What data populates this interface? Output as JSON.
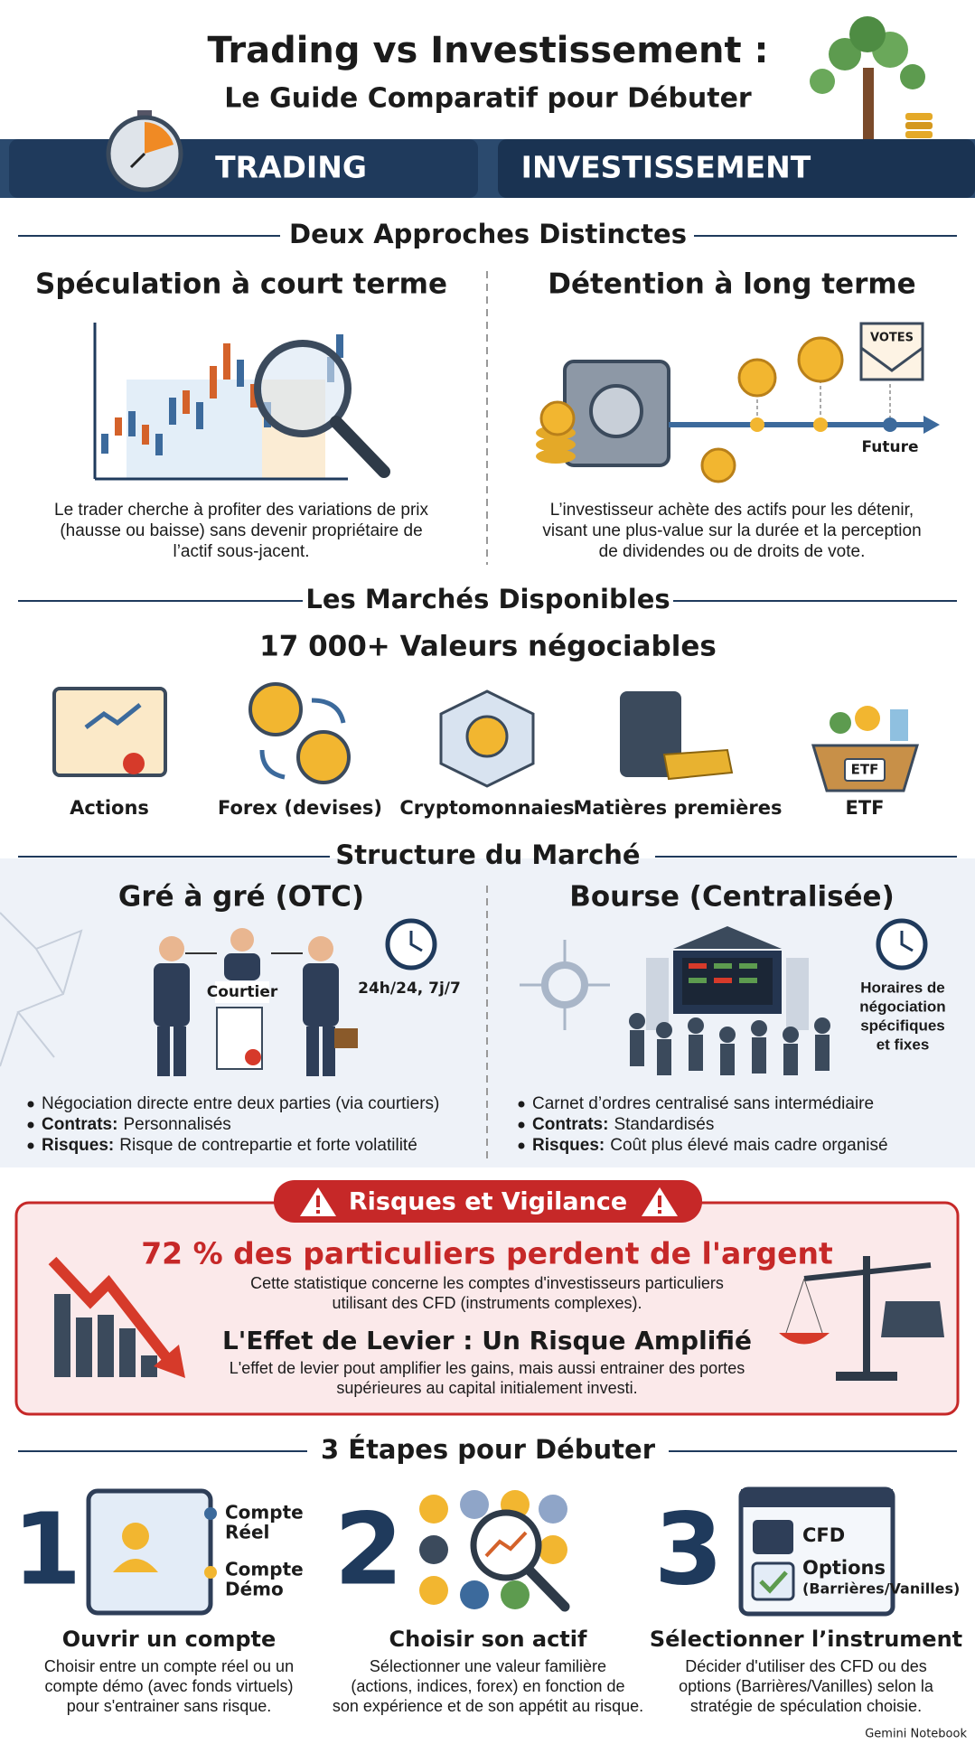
{
  "header": {
    "title_line1": "Trading vs Investissement :",
    "title_line2": "Le Guide Comparatif pour Débuter",
    "trading_label": "TRADING",
    "investing_label": "INVESTISSEMENT"
  },
  "approaches": {
    "title": "Deux Approches Distinctes",
    "trading": {
      "heading": "Spéculation à court terme",
      "text": [
        "Le trader cherche à profiter des variations de prix",
        "(hausse ou baisse) sans devenir propriétaire de",
        "l’actif sous-jacent."
      ]
    },
    "investing": {
      "heading": "Détention à long terme",
      "votes_label": "VOTES",
      "future_label": "Future",
      "text": [
        "L’investisseur achète des actifs pour les détenir,",
        "visant une plus-value sur la durée et la perception",
        "de dividendes ou de droits de vote."
      ]
    }
  },
  "markets": {
    "title": "Les Marchés Disponibles",
    "headline": "17 000+ Valeurs négociables",
    "items": [
      "Actions",
      "Forex (devises)",
      "Cryptomonnaies",
      "Matières premières",
      "ETF"
    ],
    "etf_icon_label": "ETF"
  },
  "structure": {
    "title": "Structure du Marché",
    "otc": {
      "heading": "Gré à gré (OTC)",
      "broker_label": "Courtier",
      "hours": "24h/24, 7j/7",
      "bullets": [
        {
          "text": "Négociation directe entre deux parties (via courtiers)"
        },
        {
          "label": "Contrats:",
          "text": "Personnalisés"
        },
        {
          "label": "Risques:",
          "text": "Risque de contrepartie et forte volatilité"
        }
      ]
    },
    "exchange": {
      "heading": "Bourse (Centralisée)",
      "hours": [
        "Horaires de",
        "négociation",
        "spécifiques",
        "et fixes"
      ],
      "bullets": [
        {
          "text": "Carnet d’ordres centralisé sans intermédiaire"
        },
        {
          "label": "Contrats:",
          "text": "Standardisés"
        },
        {
          "label": "Risques:",
          "text": "Coût plus élevé mais cadre organisé"
        }
      ]
    }
  },
  "risks": {
    "title": "Risques et Vigilance",
    "statistic": "72 % des particuliers perdent de l'argent",
    "statistic_text": [
      "Cette statistique concerne les comptes d'investisseurs particuliers",
      "utilisant des CFD (instruments complexes)."
    ],
    "leverage_title": "L'Effet de Levier : Un Risque Amplifié",
    "leverage_text": [
      "L'effet de levier pout amplifier les gains, mais aussi entrainer des portes",
      "supérieures au capital initialement investi."
    ]
  },
  "steps": {
    "title": "3 Étapes pour Débuter",
    "items": [
      {
        "number": "1",
        "title": "Ouvrir un compte",
        "options": [
          [
            "Compte",
            "Réel"
          ],
          [
            "Compte",
            "Démo"
          ]
        ],
        "text": [
          "Choisir entre un compte réel ou un",
          "compte démo (avec fonds virtuels)",
          "pour s'entrainer sans risque."
        ]
      },
      {
        "number": "2",
        "title": "Choisir son actif",
        "text": [
          "Sélectionner une valeur familière",
          "(actions, indices, forex) en fonction de",
          "son expérience et de son appétit au risque."
        ]
      },
      {
        "number": "3",
        "title": "Sélectionner l’instrument",
        "options": [
          "CFD",
          "Options",
          "(Barrières/Vanilles)"
        ],
        "text": [
          "Décider d'utiliser des CFD ou des",
          "options (Barrières/Vanilles) selon la",
          "stratégie de spéculation choisie."
        ]
      }
    ]
  },
  "footer": {
    "brand": "Gemini Notebook"
  }
}
